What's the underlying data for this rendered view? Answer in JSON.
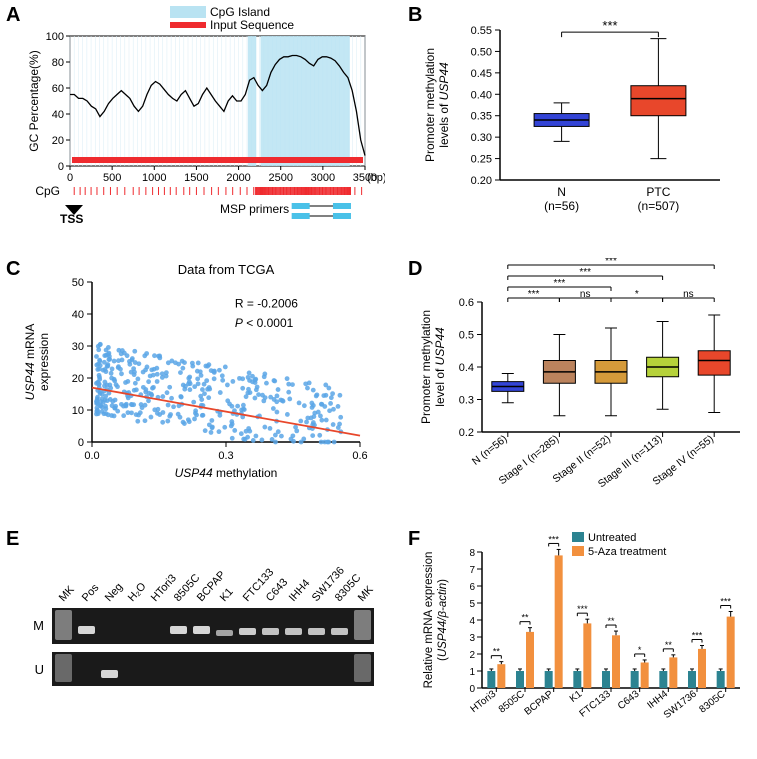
{
  "panelA": {
    "label": "A",
    "legend1": "CpG Island",
    "legend2": "Input Sequence",
    "ylabel": "GC Percentage(%)",
    "ylim": [
      0,
      100
    ],
    "ytick_step": 20,
    "xlim": [
      0,
      3500
    ],
    "xtick_step": 500,
    "xunit": "(bp)",
    "cpg_label": "CpG",
    "tss_label": "TSS",
    "msp_label": "MSP primers",
    "legend1_color": "#b9e3f2",
    "legend2_color": "#ef2b2f",
    "line_color": "#000000",
    "cpg_island_regions": [
      [
        2110,
        2210
      ],
      [
        2260,
        3320
      ]
    ],
    "gc_data": [
      55,
      55,
      52,
      52,
      50,
      46,
      44,
      38,
      42,
      48,
      52,
      55,
      58,
      55,
      52,
      46,
      42,
      46,
      55,
      62,
      65,
      63,
      59,
      55,
      52,
      50,
      55,
      58,
      52,
      46,
      48,
      55,
      60,
      55,
      50,
      46,
      42,
      50,
      54,
      50,
      50,
      55,
      66,
      68,
      62,
      58,
      62,
      72,
      78,
      82,
      84,
      84,
      85,
      85,
      84,
      82,
      79,
      77,
      82,
      84,
      84,
      83,
      81,
      77,
      72,
      68,
      58,
      42,
      20,
      8
    ],
    "cpg_ticks": [
      50,
      120,
      180,
      250,
      320,
      400,
      480,
      560,
      650,
      750,
      820,
      900,
      980,
      1050,
      1120,
      1190,
      1260,
      1350,
      1420,
      1500,
      1590,
      1680,
      1760,
      1850,
      1930,
      2020,
      2100,
      2180,
      2220,
      2260,
      2310,
      2350,
      2400,
      2440,
      2490,
      2530,
      2570,
      2610,
      2660,
      2700,
      2740,
      2790,
      2830,
      2870,
      2910,
      2960,
      3000,
      3040,
      3090,
      3130,
      3180,
      3220,
      3260,
      3300,
      3380,
      3460
    ]
  },
  "panelB": {
    "label": "B",
    "ylabel": "Promoter methylation\nlevels of USP44",
    "ylabel_line1": "Promoter methylation",
    "ylabel_line2": "levels of ",
    "ylabel_gene": "USP44",
    "ylim": [
      0.2,
      0.55
    ],
    "yticks": [
      0.2,
      0.25,
      0.3,
      0.35,
      0.4,
      0.45,
      0.5,
      0.55
    ],
    "significance": "***",
    "groups": [
      {
        "label": "N",
        "n": "(n=56)",
        "color": "#3344d6",
        "median": 0.34,
        "q1": 0.325,
        "q3": 0.355,
        "wmin": 0.29,
        "wmax": 0.38
      },
      {
        "label": "PTC",
        "n": "(n=507)",
        "color": "#e8472b",
        "median": 0.39,
        "q1": 0.35,
        "q3": 0.42,
        "wmin": 0.25,
        "wmax": 0.53
      }
    ]
  },
  "panelC": {
    "label": "C",
    "title": "Data from TCGA",
    "rtext": "R = -0.2006",
    "ptext": "P < 0.0001",
    "ylabel_gene": "USP44",
    "ylabel_rest": " mRNA\nexpression",
    "xlabel_gene": "USP44",
    "xlabel_rest": " methylation",
    "ylim": [
      0,
      50
    ],
    "yticks": [
      0,
      10,
      20,
      30,
      40,
      50
    ],
    "xlim": [
      0.0,
      0.6
    ],
    "xticks": [
      "0.0",
      "0.3",
      "0.6"
    ],
    "point_color": "#5aa6e6",
    "line_color": "#e8472b",
    "fit_line": [
      [
        0.0,
        17
      ],
      [
        0.6,
        2
      ]
    ]
  },
  "panelD": {
    "label": "D",
    "ylabel_line1": "Promoter methylation",
    "ylabel_line2": "level of ",
    "ylabel_gene": "USP44",
    "ylim": [
      0.2,
      0.6
    ],
    "yticks": [
      0.2,
      0.3,
      0.4,
      0.5,
      0.6
    ],
    "groups": [
      {
        "label": "N (n=56)",
        "color": "#3344d6",
        "median": 0.34,
        "q1": 0.325,
        "q3": 0.355,
        "wmin": 0.29,
        "wmax": 0.38
      },
      {
        "label": "Stage I (n=285)",
        "color": "#bb835d",
        "median": 0.385,
        "q1": 0.35,
        "q3": 0.42,
        "wmin": 0.25,
        "wmax": 0.5
      },
      {
        "label": "Stage II (n=52)",
        "color": "#d59a3a",
        "median": 0.385,
        "q1": 0.35,
        "q3": 0.42,
        "wmin": 0.25,
        "wmax": 0.52
      },
      {
        "label": "Stage III (n=113)",
        "color": "#b6d23a",
        "median": 0.4,
        "q1": 0.37,
        "q3": 0.43,
        "wmin": 0.27,
        "wmax": 0.54
      },
      {
        "label": "Stage IV (n=55)",
        "color": "#e8472b",
        "median": 0.42,
        "q1": 0.375,
        "q3": 0.45,
        "wmin": 0.26,
        "wmax": 0.56
      }
    ],
    "sigs": [
      {
        "from": 0,
        "to": 1,
        "label": "***",
        "level": 0
      },
      {
        "from": 1,
        "to": 2,
        "label": "ns",
        "level": 0
      },
      {
        "from": 0,
        "to": 2,
        "label": "***",
        "level": 1
      },
      {
        "from": 2,
        "to": 3,
        "label": "*",
        "level": 0
      },
      {
        "from": 0,
        "to": 3,
        "label": "***",
        "level": 2
      },
      {
        "from": 3,
        "to": 4,
        "label": "ns",
        "level": 0
      },
      {
        "from": 0,
        "to": 4,
        "label": "***",
        "level": 3
      }
    ]
  },
  "panelE": {
    "label": "E",
    "row1": "M",
    "row2": "U",
    "lanes": [
      "MK",
      "Pos",
      "Neg",
      "H₂O",
      "HTori3",
      "8505C",
      "BCPAP",
      "K1",
      "FTC133",
      "C643",
      "IHH4",
      "SW1736",
      "8305C",
      "MK"
    ],
    "gel_bg": "#1a1a1a",
    "band_color": "#e0e0e0"
  },
  "panelF": {
    "label": "F",
    "ylabel_line1": "Relative mRNA expression",
    "ylabel_line2": "(USP44/β-actin)",
    "ylim": [
      0,
      8
    ],
    "yticks": [
      0,
      1,
      2,
      3,
      4,
      5,
      6,
      7,
      8
    ],
    "legend": [
      {
        "label": "Untreated",
        "color": "#2c8391"
      },
      {
        "label": "5-Aza treatment",
        "color": "#f2903e"
      }
    ],
    "cells": [
      "HTori3",
      "8505C",
      "BCPAP",
      "K1",
      "FTC133",
      "C643",
      "IHH4",
      "SW1736",
      "8305C"
    ],
    "untreated": [
      1.0,
      1.0,
      1.0,
      1.0,
      1.0,
      1.0,
      1.0,
      1.0,
      1.0
    ],
    "treated": [
      1.4,
      3.3,
      7.8,
      3.8,
      3.1,
      1.5,
      1.8,
      2.3,
      4.2
    ],
    "err_u": [
      0.12,
      0.12,
      0.12,
      0.12,
      0.12,
      0.12,
      0.12,
      0.12,
      0.12
    ],
    "err_t": [
      0.15,
      0.25,
      0.35,
      0.25,
      0.25,
      0.15,
      0.15,
      0.2,
      0.3
    ],
    "sig": [
      "**",
      "**",
      "***",
      "***",
      "**",
      "*",
      "**",
      "***",
      "***"
    ]
  }
}
